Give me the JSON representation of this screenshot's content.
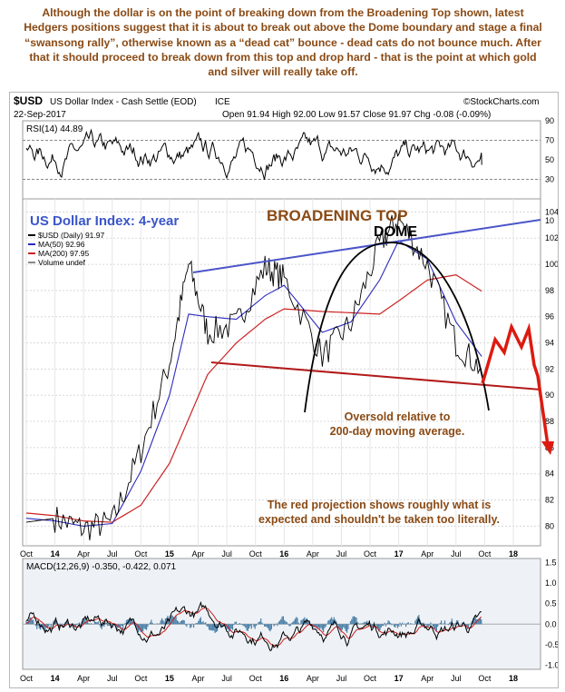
{
  "commentary": "Although the dollar is on the point of breaking down from the Broadening Top shown, latest Hedgers positions suggest that it is about to break out above the Dome boundary and stage a final “swansong rally”, otherwise known as a “dead cat” bounce - dead cats do not bounce much. After that it should proceed to break down from this top and drop hard - that is the point at which gold and silver will really take off.",
  "header": {
    "symbol": "$USD",
    "name": "US Dollar Index - Cash Settle (EOD)",
    "exchange": "ICE",
    "watermark": "©StockCharts.com",
    "date": "22-Sep-2017",
    "ohlc_line": "Open 91.94  High 92.00  Low 91.57  Close 91.97  Chg -0.08 (-0.09%)"
  },
  "colors": {
    "price": "#000000",
    "ma50": "#2b2bbf",
    "ma200": "#cc2222",
    "trend_top": "#4b55c8",
    "trend_bottom": "#b31a1a",
    "annotation_brown": "#8a4a14",
    "annotation_blue": "#3a56c8",
    "projection": "#dd1a10",
    "macd_hist": "#4a7fa8",
    "panel_bg": "#eef2f6"
  },
  "chart_data": [
    {
      "type": "line",
      "panel": "RSI",
      "title": "RSI(14) 44.89",
      "y_ticks": [
        10,
        30,
        50,
        70,
        90
      ],
      "ylim": [
        10,
        90
      ],
      "reference_lines": [
        30,
        70
      ],
      "last_value": 44.89
    },
    {
      "type": "line",
      "panel": "Price",
      "chart_title": "US Dollar Index: 4-year",
      "x_ticks": [
        "Oct",
        "14",
        "Apr",
        "Jul",
        "Oct",
        "15",
        "Apr",
        "Jul",
        "Oct",
        "16",
        "Apr",
        "Jul",
        "Oct",
        "17",
        "Apr",
        "Jul",
        "Oct",
        "18"
      ],
      "y_ticks": [
        80,
        82,
        84,
        86,
        88,
        90,
        92,
        94,
        96,
        98,
        100,
        102,
        104
      ],
      "ylim": [
        78.5,
        105
      ],
      "legend": [
        "$USD (Daily) 91.97",
        "MA(50) 92.96",
        "MA(200) 97.95",
        "Volume undef"
      ],
      "series": [
        {
          "name": "$USD (Daily)",
          "x": [
            "2013-10",
            "2014-01",
            "2014-04",
            "2014-07",
            "2014-10",
            "2015-01",
            "2015-03",
            "2015-05",
            "2015-08",
            "2015-11",
            "2016-01",
            "2016-05",
            "2016-08",
            "2016-11",
            "2017-01",
            "2017-04",
            "2017-07",
            "2017-09-22"
          ],
          "values": [
            80.3,
            80.6,
            79.8,
            80.3,
            85.8,
            92.5,
            100.0,
            94.8,
            95.4,
            99.8,
            98.9,
            93.0,
            95.5,
            101.5,
            103.5,
            100.0,
            94.0,
            91.97
          ]
        },
        {
          "name": "MA(50)",
          "x": [
            "2013-10",
            "2014-01",
            "2014-04",
            "2014-07",
            "2014-10",
            "2015-01",
            "2015-03",
            "2015-05",
            "2015-08",
            "2015-11",
            "2016-01",
            "2016-05",
            "2016-08",
            "2016-11",
            "2017-01",
            "2017-04",
            "2017-07",
            "2017-09-22"
          ],
          "values": [
            80.6,
            80.4,
            80.0,
            80.2,
            84.2,
            90.0,
            96.2,
            96.0,
            95.8,
            97.6,
            98.4,
            94.8,
            95.6,
            98.8,
            101.8,
            100.4,
            95.6,
            92.96
          ]
        },
        {
          "name": "MA(200)",
          "x": [
            "2013-10",
            "2014-01",
            "2014-04",
            "2014-07",
            "2014-10",
            "2015-01",
            "2015-03",
            "2015-05",
            "2015-08",
            "2015-11",
            "2016-01",
            "2016-05",
            "2016-08",
            "2016-11",
            "2017-01",
            "2017-04",
            "2017-07",
            "2017-09-22"
          ],
          "values": [
            81.0,
            80.8,
            80.4,
            80.3,
            81.6,
            84.8,
            88.2,
            91.6,
            94.0,
            95.8,
            96.6,
            96.4,
            96.3,
            96.2,
            97.2,
            98.8,
            99.2,
            97.95
          ]
        }
      ],
      "annotations": {
        "broadening_top": "BROADENING TOP",
        "dome": "DOME",
        "oversold": "Oversold relative to\n200-day moving average.",
        "projection_note": "The red projection shows roughly what is\nexpected and shouldn't be taken too literally."
      }
    },
    {
      "type": "line",
      "panel": "MACD",
      "title": "MACD(12,26,9) -0.350, -0.422, 0.071",
      "y_ticks": [
        -1.0,
        -0.5,
        0.0,
        0.5,
        1.0,
        1.5
      ],
      "ylim": [
        -1.1,
        1.6
      ],
      "series": [
        {
          "name": "MACD",
          "last_value": -0.35
        },
        {
          "name": "Signal",
          "last_value": -0.422
        },
        {
          "name": "Histogram",
          "last_value": 0.071
        }
      ]
    }
  ]
}
